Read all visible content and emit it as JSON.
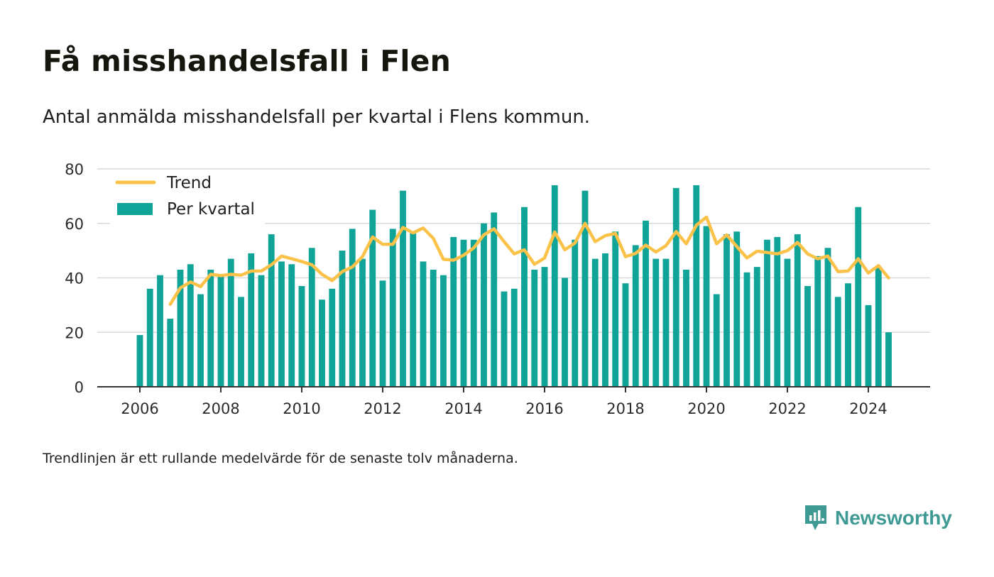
{
  "title": "Få misshandelsfall i Flen",
  "subtitle": "Antal anmälda misshandelsfall per kvartal i Flens kommun.",
  "footnote": "Trendlinjen är ett rullande medelvärde för de senaste tolv månaderna.",
  "brand": {
    "name": "Newsworthy",
    "icon": "newsworthy-logo-icon",
    "color": "#3f9a93"
  },
  "chart_data": {
    "type": "bar",
    "title": "",
    "xlabel": "",
    "ylabel": "",
    "xlim": [
      2005.0,
      2025.5
    ],
    "ylim": [
      0,
      80
    ],
    "yticks": [
      0,
      20,
      40,
      60,
      80
    ],
    "xticks": [
      2006,
      2008,
      2010,
      2012,
      2014,
      2016,
      2018,
      2020,
      2022,
      2024
    ],
    "grid": "horizontal",
    "legend": {
      "position": "top-left",
      "entries": [
        "Trend",
        "Per kvartal"
      ]
    },
    "colors": {
      "bars": "#10a398",
      "trend": "#fbc24a",
      "grid": "#d9d9d9",
      "axis": "#333333"
    },
    "x_start": "2006 Q1",
    "series": [
      {
        "name": "Per kvartal",
        "type": "bar",
        "values": [
          19,
          36,
          41,
          25,
          43,
          45,
          34,
          43,
          41,
          47,
          33,
          49,
          41,
          56,
          46,
          45,
          37,
          51,
          32,
          36,
          50,
          58,
          47,
          65,
          39,
          58,
          72,
          57,
          46,
          43,
          41,
          55,
          54,
          54,
          60,
          64,
          35,
          36,
          66,
          43,
          44,
          74,
          40,
          54,
          72,
          47,
          49,
          57,
          38,
          52,
          61,
          47,
          47,
          73,
          43,
          74,
          59,
          34,
          56,
          57,
          42,
          44,
          54,
          55,
          47,
          56,
          37,
          48,
          51,
          33,
          38,
          66,
          30,
          44,
          20
        ]
      },
      {
        "name": "Trend",
        "type": "line",
        "values": [
          null,
          null,
          null,
          30.3,
          36.3,
          38.5,
          36.8,
          41.3,
          40.8,
          41.3,
          41.0,
          42.5,
          42.5,
          44.8,
          48.0,
          47.0,
          46.0,
          44.8,
          41.3,
          39.0,
          42.3,
          44.0,
          47.8,
          55.0,
          52.3,
          52.3,
          58.5,
          56.5,
          58.3,
          54.5,
          46.8,
          46.5,
          48.3,
          51.0,
          55.8,
          58.0,
          53.3,
          48.8,
          50.3,
          45.0,
          47.3,
          56.8,
          50.3,
          52.8,
          60.0,
          53.3,
          55.5,
          56.3,
          47.8,
          49.0,
          52.0,
          49.5,
          51.8,
          57.0,
          52.5,
          59.3,
          62.3,
          52.5,
          55.8,
          51.5,
          47.3,
          49.8,
          49.3,
          48.8,
          50.0,
          53.0,
          48.8,
          47.0,
          48.0,
          42.3,
          42.5,
          47.0,
          41.8,
          44.5,
          40.0
        ]
      }
    ]
  }
}
